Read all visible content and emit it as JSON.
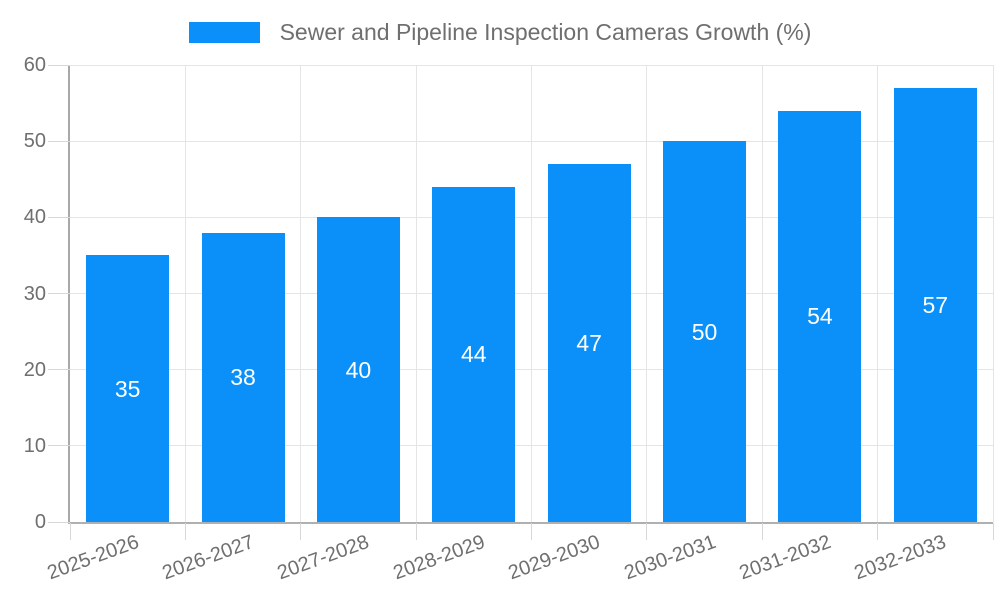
{
  "chart_data": {
    "type": "bar",
    "title": "Sewer and Pipeline Inspection Cameras Growth (%)",
    "categories": [
      "2025-2026",
      "2026-2027",
      "2027-2028",
      "2028-2029",
      "2029-2030",
      "2030-2031",
      "2031-2032",
      "2032-2033"
    ],
    "values": [
      35,
      38,
      40,
      44,
      47,
      50,
      54,
      57
    ],
    "xlabel": "",
    "ylabel": "",
    "ylim": [
      0,
      60
    ],
    "yticks": [
      0,
      10,
      20,
      30,
      40,
      50,
      60
    ],
    "grid": true,
    "legend_position": "top-center",
    "value_label_position": "inside-center",
    "x_tick_rotation_deg": -20
  },
  "legend": {
    "label": "Sewer and Pipeline Inspection Cameras Growth (%)"
  },
  "colors": {
    "bar": "#0a90f8",
    "value_label": "#ffffff",
    "axis_text": "#6f6f6f",
    "legend_text": "#6f6f6f",
    "grid_line": "#e5e5e5",
    "tick_line": "#d8d8d8",
    "axis_line_y": "#a8a8a8",
    "axis_line_x": "#b0b0b0",
    "background": "#ffffff"
  }
}
